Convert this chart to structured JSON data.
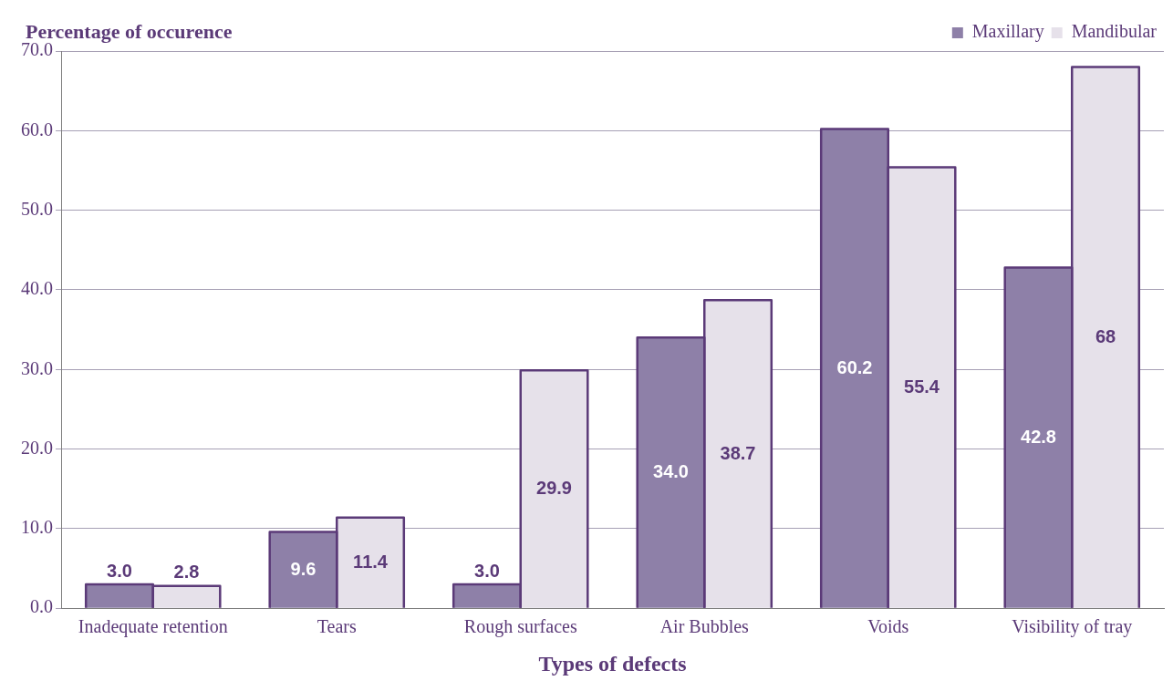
{
  "chart_data": {
    "type": "bar",
    "ylabel": "Percentage of occurence",
    "xlabel": "Types of defects",
    "categories": [
      "Inadequate retention",
      "Tears",
      "Rough surfaces",
      "Air Bubbles",
      "Voids",
      "Visibility of tray"
    ],
    "series": [
      {
        "name": "Maxillary",
        "color": "#8e80a8",
        "values": [
          3.0,
          9.6,
          3.0,
          34.0,
          60.2,
          42.8
        ],
        "value_labels": [
          "3.0",
          "9.6",
          "3.0",
          "34.0",
          "60.2",
          "42.8"
        ]
      },
      {
        "name": "Mandibular",
        "color": "#e6e1ea",
        "values": [
          2.8,
          11.4,
          29.9,
          38.7,
          55.4,
          68
        ],
        "value_labels": [
          "2.8",
          "11.4",
          "29.9",
          "38.7",
          "55.4",
          "68"
        ]
      }
    ],
    "ylim": [
      0,
      70
    ],
    "yticks": [
      {
        "value": 0,
        "label": "0.0"
      },
      {
        "value": 10,
        "label": "10.0"
      },
      {
        "value": 20,
        "label": "20.0"
      },
      {
        "value": 30,
        "label": "30.0"
      },
      {
        "value": 40,
        "label": "40.0"
      },
      {
        "value": 50,
        "label": "50.0"
      },
      {
        "value": 60,
        "label": "60.0"
      },
      {
        "value": 70,
        "label": "70.0"
      }
    ],
    "grid": "y",
    "legend": "top right"
  }
}
